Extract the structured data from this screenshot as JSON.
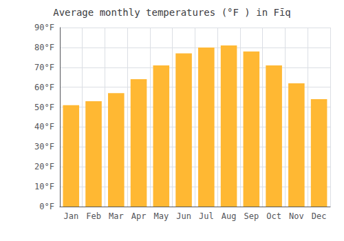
{
  "chart_data": {
    "type": "bar",
    "title": "Average monthly temperatures (°F ) in Fīq",
    "categories": [
      "Jan",
      "Feb",
      "Mar",
      "Apr",
      "May",
      "Jun",
      "Jul",
      "Aug",
      "Sep",
      "Oct",
      "Nov",
      "Dec"
    ],
    "values": [
      51,
      53,
      57,
      64,
      71,
      77,
      80,
      81,
      78,
      71,
      62,
      54
    ],
    "color": "#FFB833",
    "ylim": [
      0,
      90
    ],
    "yticks": [
      {
        "value": 0,
        "label": "0°F"
      },
      {
        "value": 10,
        "label": "10°F"
      },
      {
        "value": 20,
        "label": "20°F"
      },
      {
        "value": 30,
        "label": "30°F"
      },
      {
        "value": 40,
        "label": "40°F"
      },
      {
        "value": 50,
        "label": "50°F"
      },
      {
        "value": 60,
        "label": "60°F"
      },
      {
        "value": 70,
        "label": "70°F"
      },
      {
        "value": 80,
        "label": "80°F"
      },
      {
        "value": 90,
        "label": "90°F"
      }
    ],
    "grid": true
  }
}
